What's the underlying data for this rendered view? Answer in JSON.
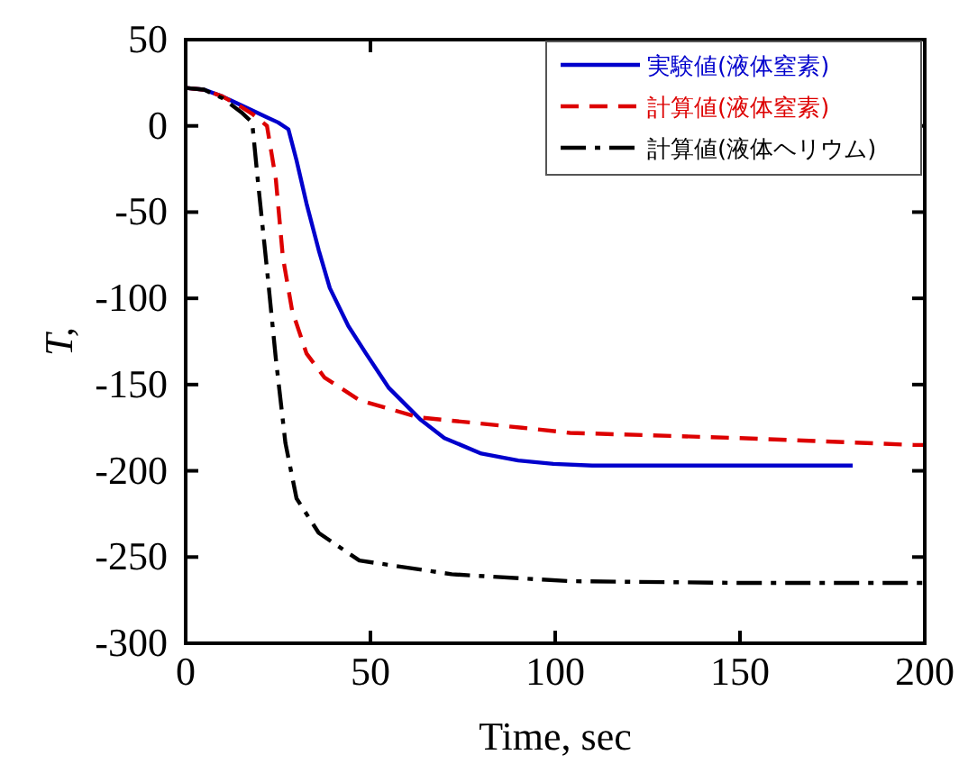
{
  "chart_data": {
    "type": "line",
    "xlabel": "Time, sec",
    "ylabel": "T,",
    "xlim": [
      0,
      200
    ],
    "ylim": [
      -300,
      50
    ],
    "xticks": [
      0,
      50,
      100,
      150,
      200
    ],
    "yticks": [
      50,
      0,
      -50,
      -100,
      -150,
      -200,
      -250,
      -300
    ],
    "grid": false,
    "legend": "top right",
    "series": [
      {
        "name": "実験値(液体窒素)",
        "color": "#0000cc",
        "line_style": "solid",
        "x": [
          0,
          5,
          10,
          15,
          18,
          22,
          25,
          27.8,
          30,
          32.7,
          36,
          39,
          44,
          48.8,
          55,
          63.4,
          70,
          80,
          90,
          99.5,
          110,
          130,
          150,
          180.5
        ],
        "values": [
          22,
          21,
          17,
          12,
          9,
          5,
          2,
          -2,
          -20,
          -45,
          -72,
          -94,
          -116,
          -132,
          -152,
          -170,
          -181,
          -190,
          -194,
          -196,
          -197,
          -197,
          -197,
          -197
        ]
      },
      {
        "name": "計算値(液体窒素)",
        "color": "#dd0000",
        "line_style": "dashed",
        "x": [
          0,
          5,
          10,
          15,
          18,
          22,
          24.4,
          26.3,
          28.8,
          32.7,
          37.6,
          47,
          63,
          91,
          104,
          150,
          197,
          200
        ],
        "values": [
          22,
          21,
          17,
          11,
          7,
          0,
          -31,
          -76,
          -107,
          -132,
          -146,
          -159,
          -169,
          -175,
          -178,
          -181,
          -185,
          -185
        ]
      },
      {
        "name": "計算値(液体ヘリウム)",
        "color": "#000000",
        "line_style": "dashdot",
        "x": [
          0,
          5,
          10,
          15,
          18,
          19.5,
          22,
          24.4,
          27,
          30,
          36,
          47,
          72,
          104,
          150,
          200
        ],
        "values": [
          22,
          21,
          16,
          8,
          2,
          -31,
          -83,
          -135,
          -184,
          -216,
          -236,
          -252,
          -260,
          -264,
          -265,
          -265
        ]
      }
    ]
  }
}
